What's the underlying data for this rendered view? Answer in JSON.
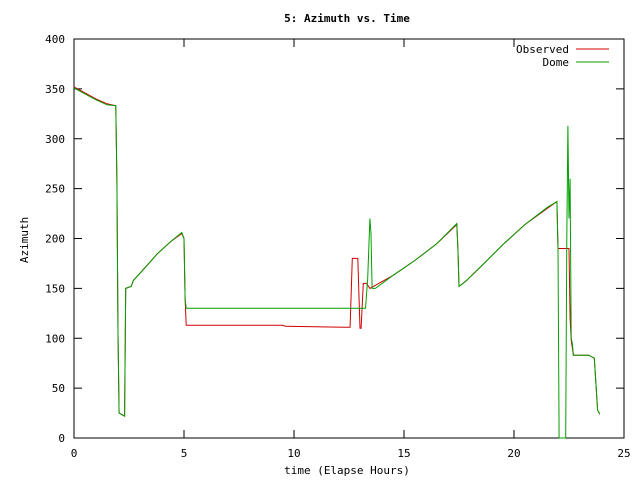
{
  "chart_data": {
    "type": "line",
    "title": "5: Azimuth vs. Time",
    "xlabel": "time (Elapse Hours)",
    "ylabel": "Azimuth",
    "xlim": [
      0,
      25
    ],
    "ylim": [
      0,
      400
    ],
    "xticks": [
      0,
      5,
      10,
      15,
      20,
      25
    ],
    "yticks": [
      0,
      50,
      100,
      150,
      200,
      250,
      300,
      350,
      400
    ],
    "grid": false,
    "legend_position": "top-right",
    "series": [
      {
        "name": "Observed",
        "color": "#d00000",
        "points": [
          [
            0,
            352
          ],
          [
            0.5,
            346
          ],
          [
            1.0,
            340
          ],
          [
            1.5,
            335
          ],
          [
            1.9,
            333
          ],
          [
            1.95,
            258
          ],
          [
            2.0,
            105
          ],
          [
            2.05,
            25
          ],
          [
            2.3,
            22
          ],
          [
            2.35,
            150
          ],
          [
            2.6,
            152
          ],
          [
            2.7,
            158
          ],
          [
            3.2,
            170
          ],
          [
            3.8,
            185
          ],
          [
            4.4,
            197
          ],
          [
            4.9,
            205
          ],
          [
            5.0,
            200
          ],
          [
            5.05,
            140
          ],
          [
            5.1,
            113
          ],
          [
            9.5,
            113
          ],
          [
            9.6,
            112
          ],
          [
            12.3,
            111
          ],
          [
            12.55,
            111
          ],
          [
            12.65,
            180
          ],
          [
            12.9,
            180
          ],
          [
            13.0,
            110
          ],
          [
            13.05,
            110
          ],
          [
            13.15,
            155
          ],
          [
            13.3,
            155
          ],
          [
            13.45,
            150
          ],
          [
            14.5,
            163
          ],
          [
            15.5,
            178
          ],
          [
            16.5,
            195
          ],
          [
            17.4,
            214
          ],
          [
            17.45,
            190
          ],
          [
            17.5,
            152
          ],
          [
            17.8,
            157
          ],
          [
            18.5,
            172
          ],
          [
            19.5,
            194
          ],
          [
            20.5,
            214
          ],
          [
            21.5,
            230
          ],
          [
            21.95,
            237
          ],
          [
            22.0,
            190
          ],
          [
            22.5,
            190
          ],
          [
            22.55,
            120
          ],
          [
            22.6,
            98
          ],
          [
            22.7,
            83
          ],
          [
            23.4,
            83
          ],
          [
            23.65,
            80
          ],
          [
            23.8,
            28
          ],
          [
            23.9,
            24
          ]
        ]
      },
      {
        "name": "Dome",
        "color": "#00a000",
        "points": [
          [
            0,
            351
          ],
          [
            0.5,
            345
          ],
          [
            1.0,
            339
          ],
          [
            1.5,
            334
          ],
          [
            1.9,
            333
          ],
          [
            1.95,
            258
          ],
          [
            2.0,
            105
          ],
          [
            2.05,
            25
          ],
          [
            2.3,
            22
          ],
          [
            2.35,
            150
          ],
          [
            2.6,
            152
          ],
          [
            2.7,
            158
          ],
          [
            3.2,
            170
          ],
          [
            3.8,
            185
          ],
          [
            4.4,
            197
          ],
          [
            4.9,
            206
          ],
          [
            5.0,
            200
          ],
          [
            5.05,
            140
          ],
          [
            5.1,
            130
          ],
          [
            12.6,
            130
          ],
          [
            13.25,
            130
          ],
          [
            13.35,
            160
          ],
          [
            13.45,
            220
          ],
          [
            13.5,
            205
          ],
          [
            13.55,
            150
          ],
          [
            13.7,
            150
          ],
          [
            14.5,
            163
          ],
          [
            15.5,
            178
          ],
          [
            16.5,
            195
          ],
          [
            17.4,
            215
          ],
          [
            17.45,
            190
          ],
          [
            17.5,
            152
          ],
          [
            17.8,
            157
          ],
          [
            18.5,
            172
          ],
          [
            19.5,
            194
          ],
          [
            20.5,
            214
          ],
          [
            21.5,
            231
          ],
          [
            21.95,
            237
          ],
          [
            22.0,
            190
          ],
          [
            22.05,
            0
          ],
          [
            22.35,
            0
          ],
          [
            22.4,
            200
          ],
          [
            22.45,
            313
          ],
          [
            22.5,
            220
          ],
          [
            22.55,
            260
          ],
          [
            22.6,
            100
          ],
          [
            22.65,
            95
          ],
          [
            22.7,
            83
          ],
          [
            23.4,
            83
          ],
          [
            23.65,
            80
          ],
          [
            23.8,
            28
          ],
          [
            23.9,
            24
          ]
        ]
      }
    ]
  }
}
